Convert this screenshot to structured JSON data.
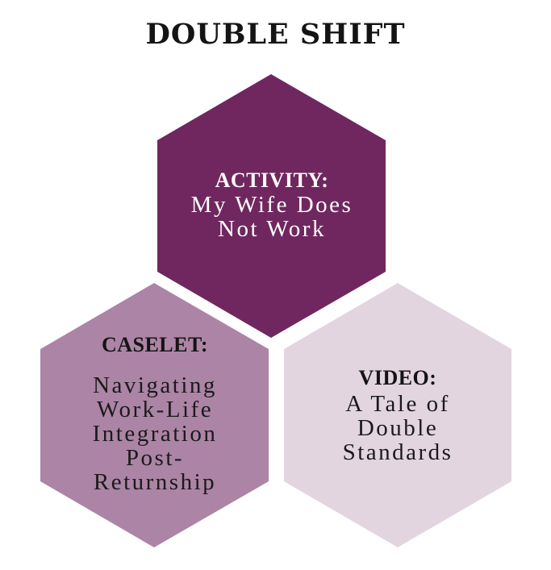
{
  "title": "DOUBLE SHIFT",
  "colors": {
    "activity_fill": "#70275f",
    "caselet_fill": "#ac84a6",
    "video_fill": "#e2d5e0",
    "title_text": "#141414"
  },
  "hexagons": {
    "activity": {
      "heading": "ACTIVITY:",
      "lines": [
        "My Wife Does",
        "Not Work"
      ]
    },
    "caselet": {
      "heading": "CASELET:",
      "lines": [
        "Navigating",
        "Work-Life",
        "Integration",
        "Post-",
        "Returnship"
      ]
    },
    "video": {
      "heading": "VIDEO:",
      "lines": [
        "A Tale of",
        "Double",
        "Standards"
      ]
    }
  }
}
